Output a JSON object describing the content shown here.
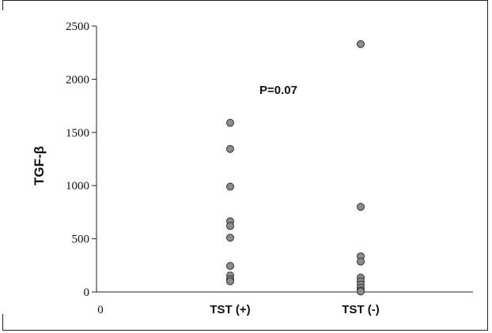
{
  "chart_data": {
    "type": "scatter",
    "title": "",
    "xlabel": "",
    "ylabel": "TGF-β",
    "ylim": [
      0,
      2500
    ],
    "y_ticks": [
      0,
      500,
      1000,
      1500,
      2000,
      2500
    ],
    "x_origin_label": "0",
    "categories": [
      "TST (+)",
      "TST (-)"
    ],
    "annotation": "P=0.07",
    "grid": false,
    "series": [
      {
        "category": "TST (+)",
        "values": [
          1590,
          1345,
          990,
          665,
          620,
          510,
          245,
          155,
          120,
          100
        ]
      },
      {
        "category": "TST (-)",
        "values": [
          2330,
          800,
          335,
          285,
          135,
          100,
          70,
          40,
          15,
          5
        ]
      }
    ],
    "point_color": "#8c8c8c"
  }
}
